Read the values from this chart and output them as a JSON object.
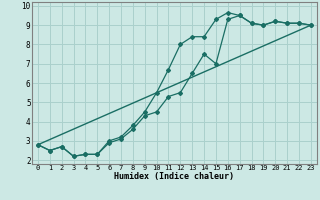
{
  "xlabel": "Humidex (Indice chaleur)",
  "bg_color": "#cce8e4",
  "grid_color": "#aad0cc",
  "line_color": "#1a6e64",
  "spine_color": "#808080",
  "xlim": [
    -0.5,
    23.5
  ],
  "ylim": [
    1.8,
    10.2
  ],
  "xticks": [
    0,
    1,
    2,
    3,
    4,
    5,
    6,
    7,
    8,
    9,
    10,
    11,
    12,
    13,
    14,
    15,
    16,
    17,
    18,
    19,
    20,
    21,
    22,
    23
  ],
  "yticks": [
    2,
    3,
    4,
    5,
    6,
    7,
    8,
    9,
    10
  ],
  "hours": [
    0,
    1,
    2,
    3,
    4,
    5,
    6,
    7,
    8,
    9,
    10,
    11,
    12,
    13,
    14,
    15,
    16,
    17,
    18,
    19,
    20,
    21,
    22,
    23
  ],
  "line1": [
    2.8,
    2.5,
    2.7,
    2.2,
    2.3,
    2.3,
    3.0,
    3.2,
    3.8,
    4.5,
    5.5,
    6.7,
    8.0,
    8.4,
    8.4,
    9.3,
    9.65,
    9.5,
    9.1,
    9.0,
    9.2,
    9.1,
    9.1,
    9.0
  ],
  "line2": [
    2.8,
    2.5,
    2.7,
    2.2,
    2.3,
    2.3,
    2.9,
    3.1,
    3.6,
    4.3,
    4.5,
    5.3,
    5.5,
    6.5,
    7.5,
    7.0,
    9.3,
    9.5,
    9.1,
    9.0,
    9.2,
    9.1,
    9.1,
    9.0
  ],
  "line3_x": [
    0,
    23
  ],
  "line3_y": [
    2.8,
    9.0
  ],
  "xlabel_fontsize": 6,
  "tick_fontsize": 5
}
